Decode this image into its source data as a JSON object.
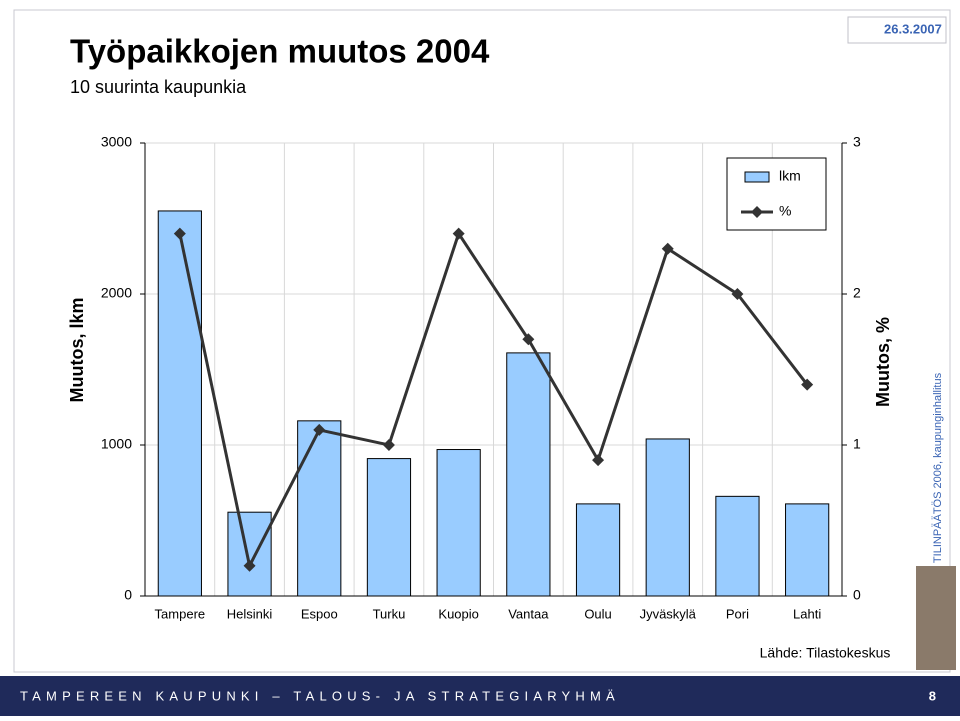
{
  "slide": {
    "date": "26.3.2007",
    "side_text": "TILINPÄÄTÖS 2006, kaupunginhallitus",
    "footer": "TAMPEREEN KAUPUNKI – TALOUS- JA STRATEGIARYHMÄ",
    "page_number": "8"
  },
  "chart_data": {
    "type": "bar",
    "title": "Työpaikkojen muutos 2004",
    "subtitle": "10 suurinta kaupunkia",
    "y_label": "Muutos, lkm",
    "y2_label": "Muutos, %",
    "source": "Lähde: Tilastokeskus",
    "categories": [
      "Tampere",
      "Helsinki",
      "Espoo",
      "Turku",
      "Kuopio",
      "Vantaa",
      "Oulu",
      "Jyväskylä",
      "Pori",
      "Lahti"
    ],
    "series": [
      {
        "name": "lkm",
        "type": "bar",
        "color": "#99ccff",
        "values": [
          2550,
          555,
          1160,
          910,
          970,
          1610,
          610,
          1040,
          660,
          610
        ]
      },
      {
        "name": "%",
        "type": "line",
        "axis": "y2",
        "color": "#333333",
        "values": [
          2.4,
          0.2,
          1.1,
          1.0,
          2.4,
          1.7,
          0.9,
          2.3,
          2.0,
          1.4
        ]
      }
    ],
    "ylim": [
      0,
      3000
    ],
    "yticks": [
      0,
      1000,
      2000,
      3000
    ],
    "y2lim": [
      0,
      3
    ],
    "y2ticks": [
      0,
      1,
      2,
      3
    ],
    "grid": true,
    "legend": "top-right"
  }
}
